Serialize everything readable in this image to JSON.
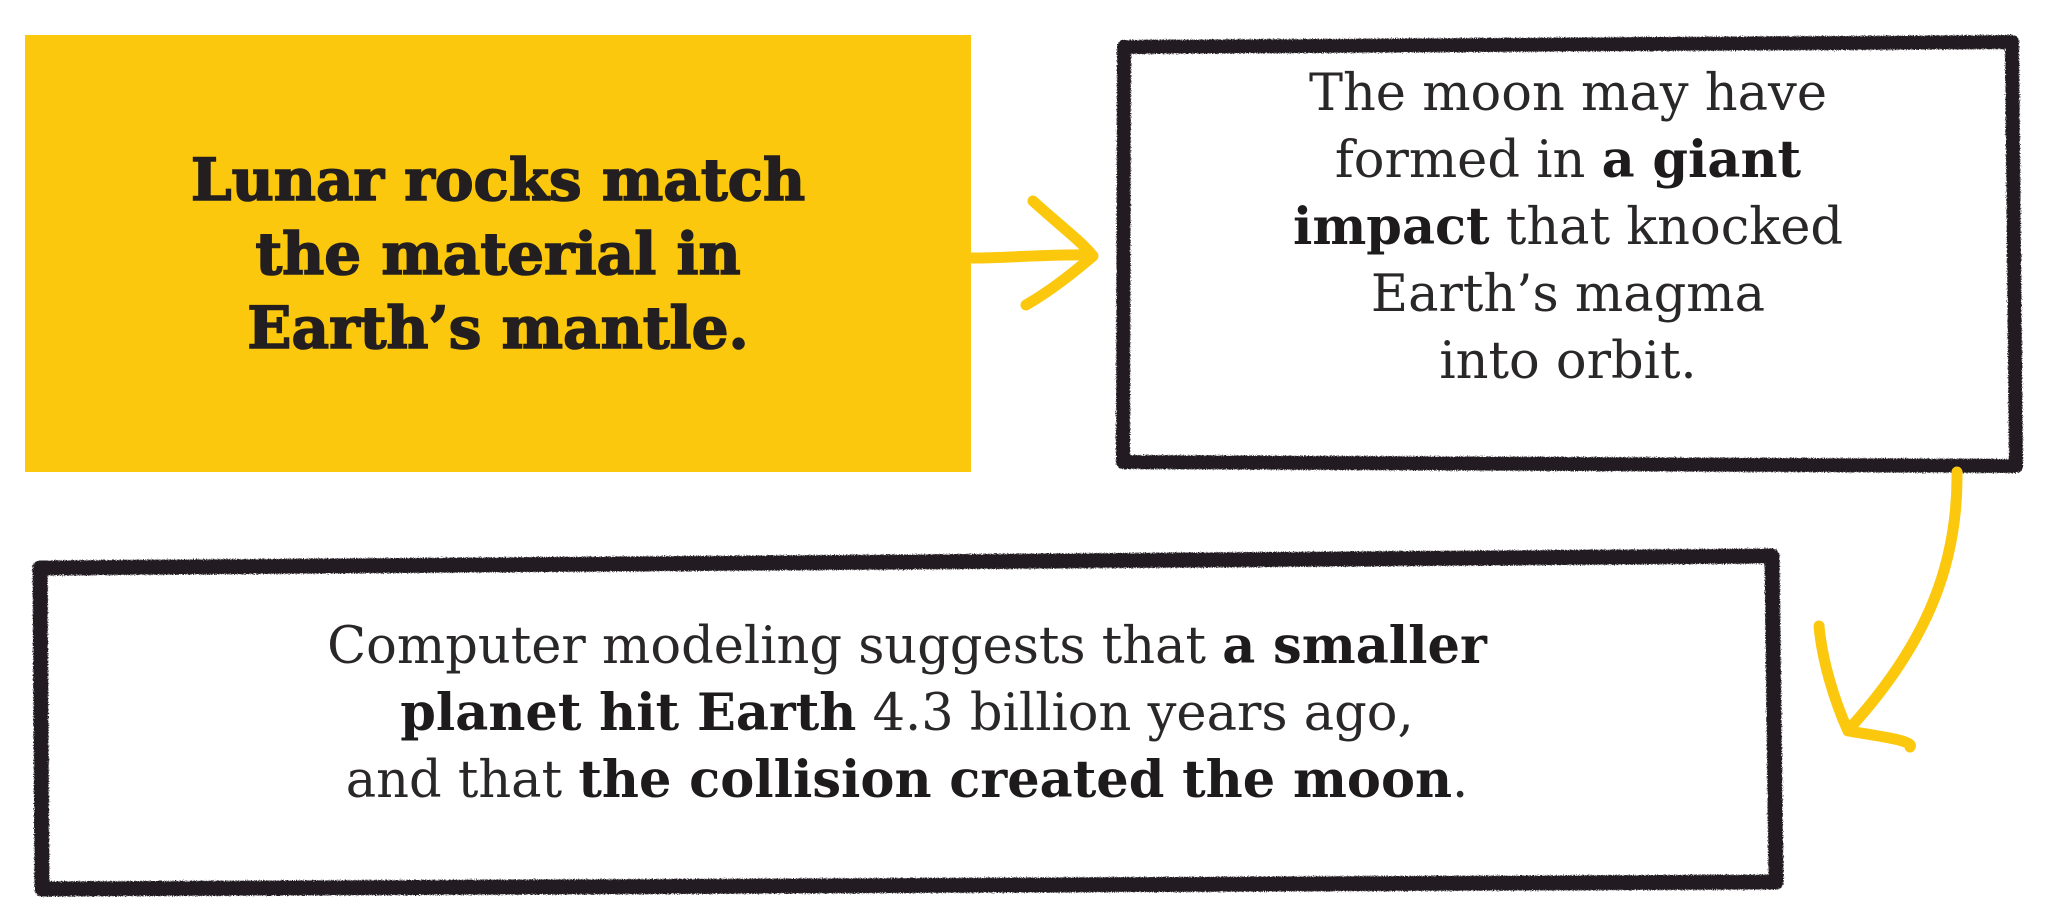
{
  "colors": {
    "accent": "#fcc80d",
    "ink": "#231f20",
    "background": "#ffffff"
  },
  "box1": {
    "lines": [
      "Lunar rocks match",
      "the material in",
      "Earth’s mantle."
    ]
  },
  "box2": {
    "lines": [
      [
        {
          "t": "The moon may have",
          "b": false
        }
      ],
      [
        {
          "t": "formed in ",
          "b": false
        },
        {
          "t": "a giant",
          "b": true
        }
      ],
      [
        {
          "t": "impact",
          "b": true
        },
        {
          "t": " that knocked",
          "b": false
        }
      ],
      [
        {
          "t": "Earth’s magma",
          "b": false
        }
      ],
      [
        {
          "t": "into orbit.",
          "b": false
        }
      ]
    ]
  },
  "box3": {
    "lines": [
      [
        {
          "t": "Computer modeling suggests that ",
          "b": false
        },
        {
          "t": "a smaller",
          "b": true
        }
      ],
      [
        {
          "t": "planet hit Earth",
          "b": true
        },
        {
          "t": " 4.3 billion years ago,",
          "b": false
        }
      ],
      [
        {
          "t": "and that ",
          "b": false
        },
        {
          "t": "the collision created the moon",
          "b": true
        },
        {
          "t": ".",
          "b": false
        }
      ]
    ]
  },
  "arrows": [
    {
      "name": "arrow-box1-to-box2",
      "direction": "right"
    },
    {
      "name": "arrow-box2-to-box3",
      "direction": "down"
    }
  ]
}
